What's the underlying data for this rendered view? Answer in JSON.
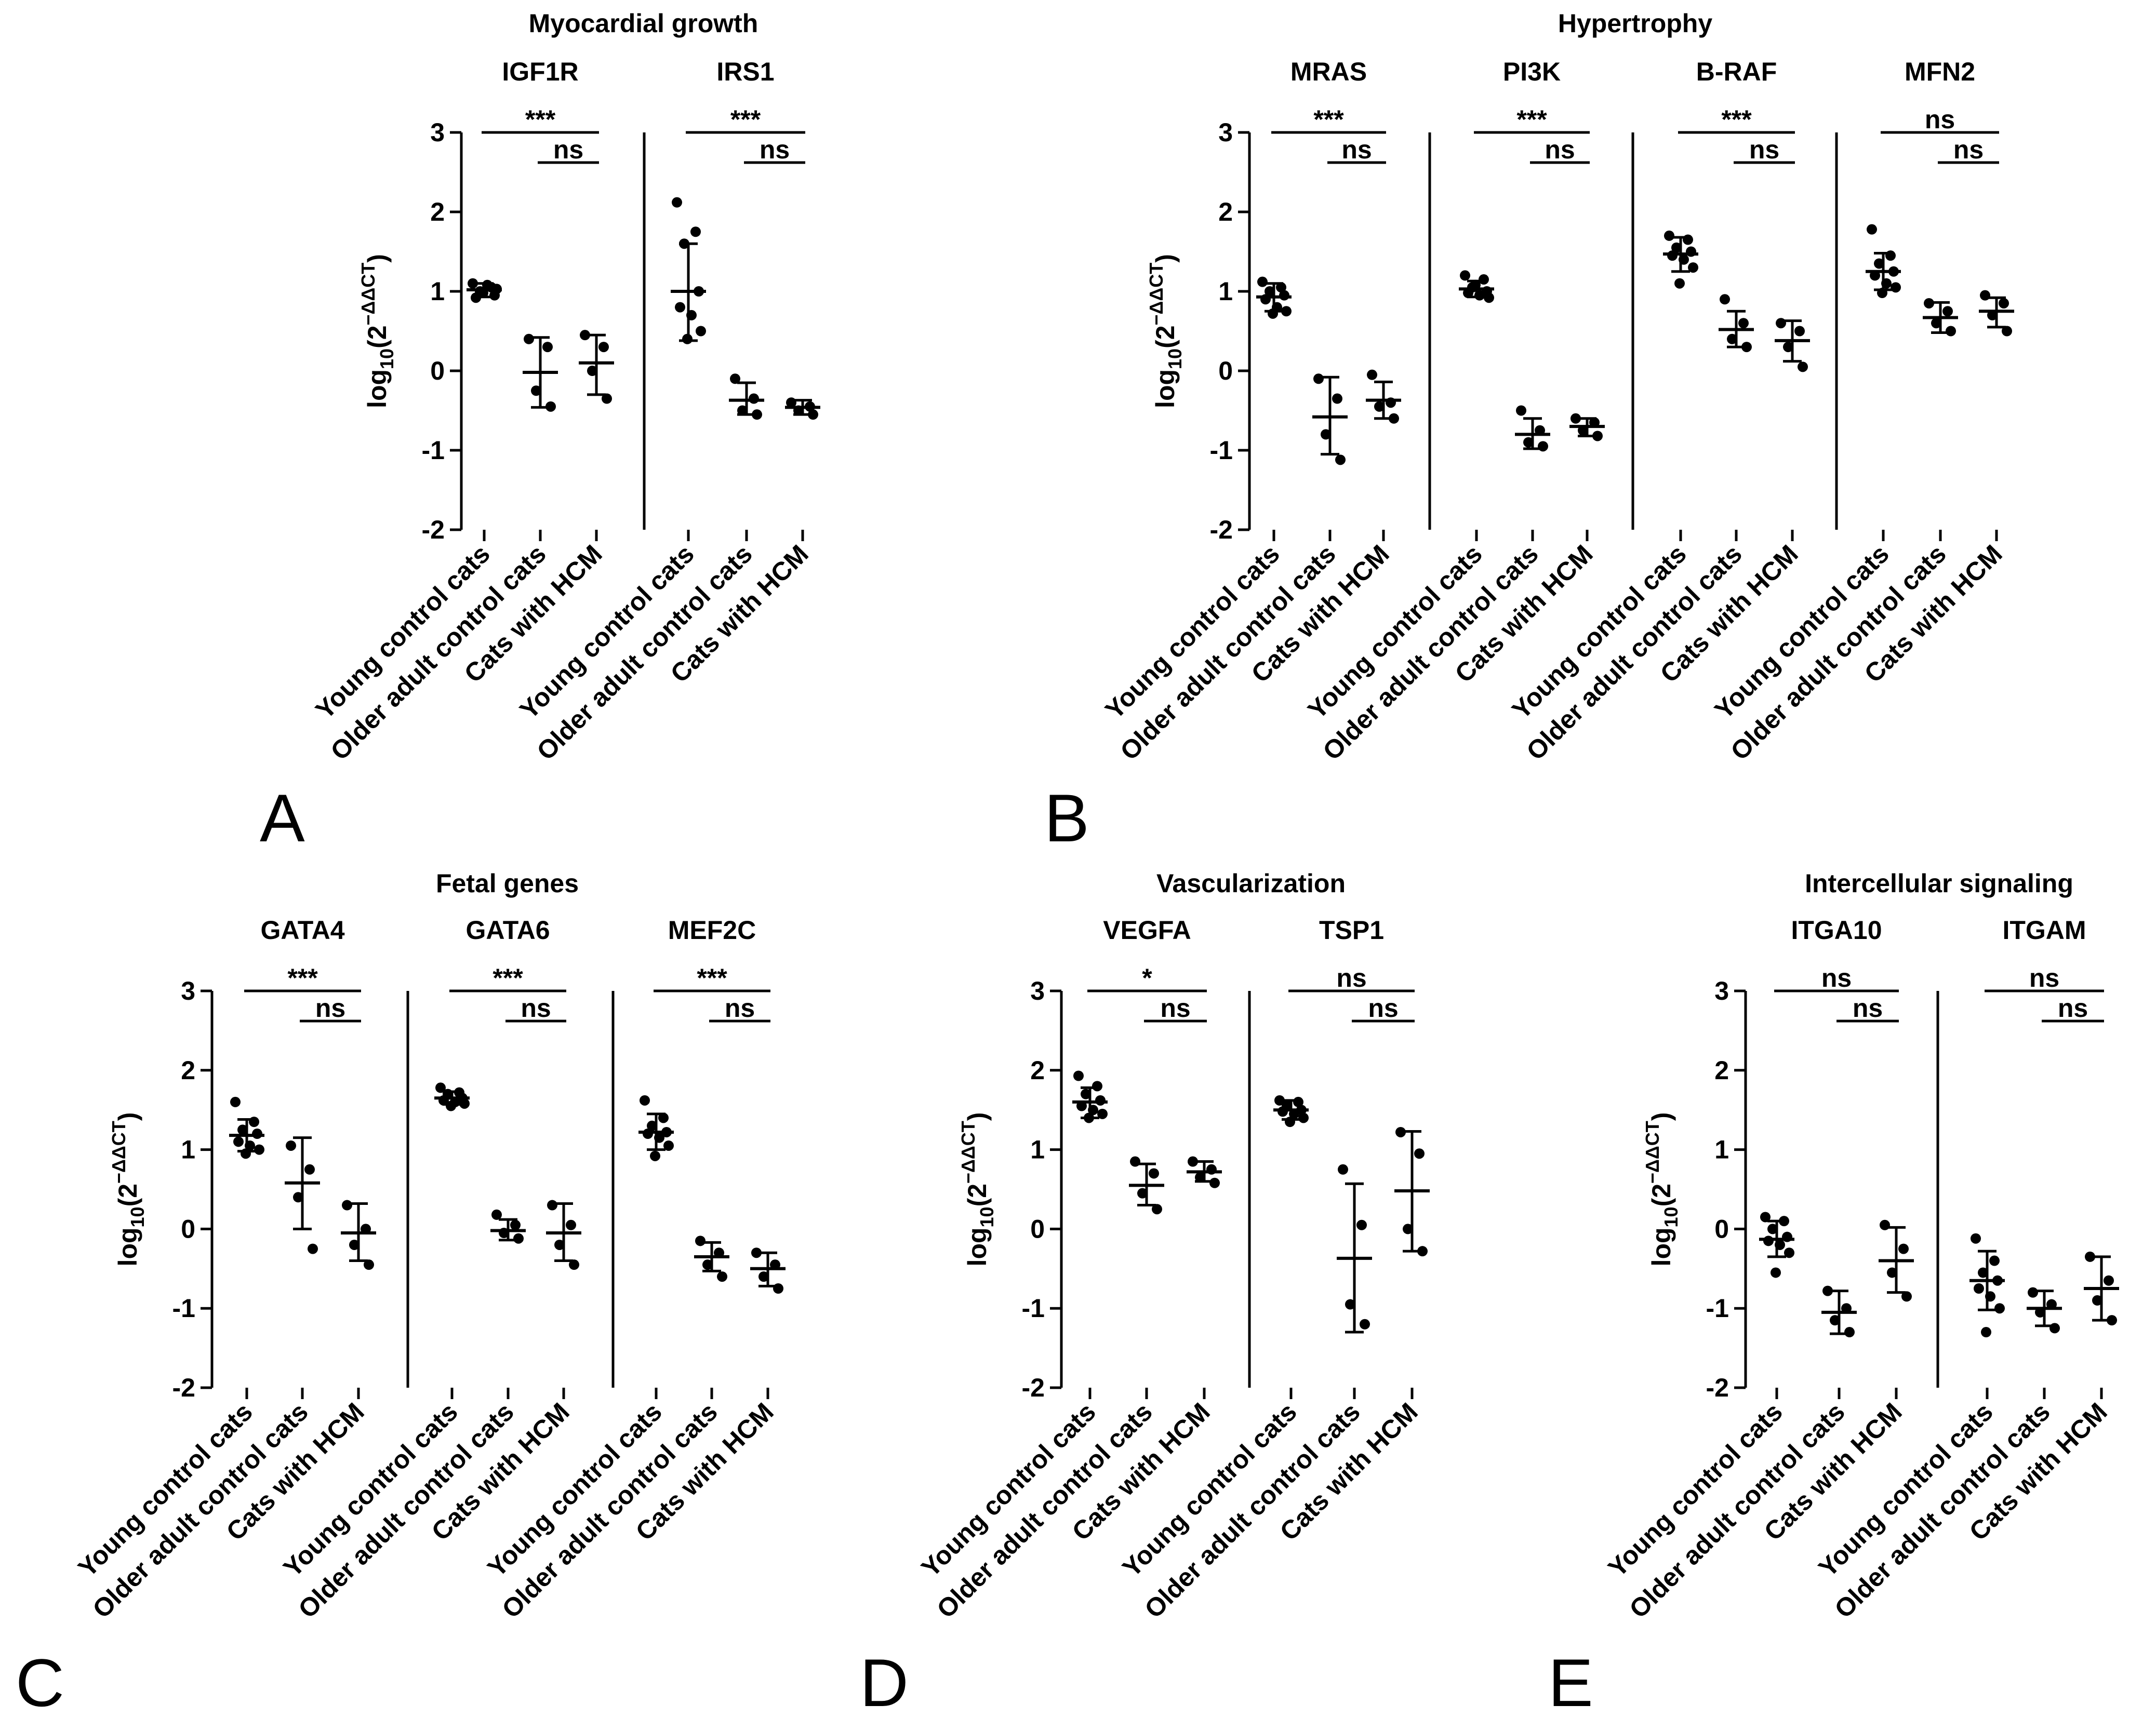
{
  "chart_data": [
    {
      "type": "scatter",
      "panel": "A",
      "title": "Myocardial growth",
      "ylabel": "log10(2−ΔΔCT)",
      "ylim": [
        -2,
        3
      ],
      "yticks": [
        "3",
        "2",
        "1",
        "0",
        "-1",
        "-2"
      ],
      "categories": [
        "Young control cats",
        "Older adult control cats",
        "Cats with HCM"
      ],
      "genes": [
        {
          "name": "IGF1R",
          "sig_main": "***",
          "sig_sub": "ns",
          "groups": [
            {
              "mean": 1.02,
              "sd_low": 0.93,
              "sd_high": 1.1,
              "points": [
                1.1,
                1.05,
                1.0,
                0.95,
                0.92,
                1.08,
                1.03,
                0.98
              ]
            },
            {
              "mean": -0.02,
              "sd_low": -0.46,
              "sd_high": 0.42,
              "points": [
                0.4,
                0.3,
                -0.25,
                -0.45
              ]
            },
            {
              "mean": 0.1,
              "sd_low": -0.3,
              "sd_high": 0.45,
              "points": [
                0.45,
                0.3,
                0.0,
                -0.35
              ]
            }
          ]
        },
        {
          "name": "IRS1",
          "sig_main": "***",
          "sig_sub": "ns",
          "groups": [
            {
              "mean": 1.0,
              "sd_low": 0.38,
              "sd_high": 1.6,
              "points": [
                2.12,
                1.75,
                1.6,
                1.0,
                0.8,
                0.7,
                0.5,
                0.4
              ]
            },
            {
              "mean": -0.37,
              "sd_low": -0.55,
              "sd_high": -0.15,
              "points": [
                -0.1,
                -0.35,
                -0.5,
                -0.55
              ]
            },
            {
              "mean": -0.46,
              "sd_low": -0.55,
              "sd_high": -0.37,
              "points": [
                -0.4,
                -0.45,
                -0.5,
                -0.55
              ]
            }
          ]
        }
      ]
    },
    {
      "type": "scatter",
      "panel": "B",
      "title": "Hypertrophy",
      "ylabel": "log10(2−ΔΔCT)",
      "ylim": [
        -2,
        3
      ],
      "yticks": [
        "3",
        "2",
        "1",
        "0",
        "-1",
        "-2"
      ],
      "categories": [
        "Young control cats",
        "Older adult control cats",
        "Cats with HCM"
      ],
      "genes": [
        {
          "name": "MRAS",
          "sig_main": "***",
          "sig_sub": "ns",
          "groups": [
            {
              "mean": 0.93,
              "sd_low": 0.75,
              "sd_high": 1.1,
              "points": [
                1.12,
                1.05,
                1.0,
                0.95,
                0.9,
                0.8,
                0.75,
                0.72
              ]
            },
            {
              "mean": -0.58,
              "sd_low": -1.05,
              "sd_high": -0.08,
              "points": [
                -0.1,
                -0.35,
                -0.8,
                -1.12
              ]
            },
            {
              "mean": -0.37,
              "sd_low": -0.6,
              "sd_high": -0.14,
              "points": [
                -0.05,
                -0.4,
                -0.45,
                -0.6
              ]
            }
          ]
        },
        {
          "name": "PI3K",
          "sig_main": "***",
          "sig_sub": "ns",
          "groups": [
            {
              "mean": 1.03,
              "sd_low": 0.93,
              "sd_high": 1.13,
              "points": [
                1.2,
                1.15,
                1.05,
                1.0,
                0.98,
                0.95,
                0.92,
                1.08
              ]
            },
            {
              "mean": -0.8,
              "sd_low": -0.98,
              "sd_high": -0.6,
              "points": [
                -0.5,
                -0.75,
                -0.9,
                -0.95
              ]
            },
            {
              "mean": -0.7,
              "sd_low": -0.82,
              "sd_high": -0.6,
              "points": [
                -0.6,
                -0.65,
                -0.75,
                -0.82
              ]
            }
          ]
        },
        {
          "name": "B-RAF",
          "sig_main": "***",
          "sig_sub": "ns",
          "groups": [
            {
              "mean": 1.47,
              "sd_low": 1.25,
              "sd_high": 1.68,
              "points": [
                1.7,
                1.65,
                1.55,
                1.5,
                1.45,
                1.4,
                1.3,
                1.1
              ]
            },
            {
              "mean": 0.52,
              "sd_low": 0.3,
              "sd_high": 0.75,
              "points": [
                0.9,
                0.6,
                0.4,
                0.3
              ]
            },
            {
              "mean": 0.38,
              "sd_low": 0.12,
              "sd_high": 0.63,
              "points": [
                0.6,
                0.5,
                0.3,
                0.05
              ]
            }
          ]
        },
        {
          "name": "MFN2",
          "sig_main": "ns",
          "sig_sub": "ns",
          "groups": [
            {
              "mean": 1.25,
              "sd_low": 1.02,
              "sd_high": 1.48,
              "points": [
                1.78,
                1.45,
                1.35,
                1.25,
                1.2,
                1.1,
                1.05,
                0.98
              ]
            },
            {
              "mean": 0.67,
              "sd_low": 0.48,
              "sd_high": 0.86,
              "points": [
                0.85,
                0.75,
                0.6,
                0.5
              ]
            },
            {
              "mean": 0.75,
              "sd_low": 0.55,
              "sd_high": 0.92,
              "points": [
                0.95,
                0.85,
                0.7,
                0.5
              ]
            }
          ]
        }
      ]
    },
    {
      "type": "scatter",
      "panel": "C",
      "title": "Fetal genes",
      "ylabel": "log10(2−ΔΔCT)",
      "ylim": [
        -2,
        3
      ],
      "yticks": [
        "3",
        "2",
        "1",
        "0",
        "-1",
        "-2"
      ],
      "categories": [
        "Young control cats",
        "Older adult control cats",
        "Cats with HCM"
      ],
      "genes": [
        {
          "name": "GATA4",
          "sig_main": "***",
          "sig_sub": "ns",
          "groups": [
            {
              "mean": 1.18,
              "sd_low": 0.98,
              "sd_high": 1.38,
              "points": [
                1.6,
                1.35,
                1.25,
                1.2,
                1.1,
                1.05,
                1.0,
                0.95
              ]
            },
            {
              "mean": 0.58,
              "sd_low": 0.0,
              "sd_high": 1.15,
              "points": [
                1.05,
                0.75,
                0.4,
                -0.25
              ]
            },
            {
              "mean": -0.05,
              "sd_low": -0.4,
              "sd_high": 0.32,
              "points": [
                0.3,
                0.0,
                -0.2,
                -0.45
              ]
            }
          ]
        },
        {
          "name": "GATA6",
          "sig_main": "***",
          "sig_sub": "ns",
          "groups": [
            {
              "mean": 1.65,
              "sd_low": 1.57,
              "sd_high": 1.73,
              "points": [
                1.78,
                1.72,
                1.7,
                1.65,
                1.62,
                1.6,
                1.58,
                1.55
              ]
            },
            {
              "mean": -0.02,
              "sd_low": -0.14,
              "sd_high": 0.12,
              "points": [
                0.18,
                0.05,
                -0.05,
                -0.12
              ]
            },
            {
              "mean": -0.05,
              "sd_low": -0.4,
              "sd_high": 0.32,
              "points": [
                0.3,
                0.05,
                -0.2,
                -0.45
              ]
            }
          ]
        },
        {
          "name": "MEF2C",
          "sig_main": "***",
          "sig_sub": "ns",
          "groups": [
            {
              "mean": 1.22,
              "sd_low": 1.0,
              "sd_high": 1.45,
              "points": [
                1.62,
                1.4,
                1.3,
                1.22,
                1.2,
                1.15,
                1.05,
                0.92
              ]
            },
            {
              "mean": -0.35,
              "sd_low": -0.53,
              "sd_high": -0.17,
              "points": [
                -0.15,
                -0.3,
                -0.45,
                -0.6
              ]
            },
            {
              "mean": -0.5,
              "sd_low": -0.72,
              "sd_high": -0.3,
              "points": [
                -0.3,
                -0.45,
                -0.6,
                -0.75
              ]
            }
          ]
        }
      ]
    },
    {
      "type": "scatter",
      "panel": "D",
      "title": "Vascularization",
      "ylabel": "log10(2−ΔΔCT)",
      "ylim": [
        -2,
        3
      ],
      "yticks": [
        "3",
        "2",
        "1",
        "0",
        "-1",
        "-2"
      ],
      "categories": [
        "Young control cats",
        "Older adult control cats",
        "Cats with HCM"
      ],
      "genes": [
        {
          "name": "VEGFA",
          "sig_main": "*",
          "sig_sub": "ns",
          "groups": [
            {
              "mean": 1.6,
              "sd_low": 1.4,
              "sd_high": 1.78,
              "points": [
                1.93,
                1.8,
                1.7,
                1.62,
                1.55,
                1.5,
                1.45,
                1.4
              ]
            },
            {
              "mean": 0.55,
              "sd_low": 0.3,
              "sd_high": 0.82,
              "points": [
                0.85,
                0.7,
                0.45,
                0.25
              ]
            },
            {
              "mean": 0.72,
              "sd_low": 0.6,
              "sd_high": 0.85,
              "points": [
                0.85,
                0.75,
                0.65,
                0.58
              ]
            }
          ]
        },
        {
          "name": "TSP1",
          "sig_main": "ns",
          "sig_sub": "ns",
          "groups": [
            {
              "mean": 1.5,
              "sd_low": 1.38,
              "sd_high": 1.62,
              "points": [
                1.62,
                1.6,
                1.55,
                1.5,
                1.48,
                1.45,
                1.4,
                1.35
              ]
            },
            {
              "mean": -0.37,
              "sd_low": -1.3,
              "sd_high": 0.57,
              "points": [
                0.75,
                0.05,
                -0.95,
                -1.2
              ]
            },
            {
              "mean": 0.48,
              "sd_low": -0.28,
              "sd_high": 1.23,
              "points": [
                1.22,
                0.95,
                0.0,
                -0.28
              ]
            }
          ]
        }
      ]
    },
    {
      "type": "scatter",
      "panel": "E",
      "title": "Intercellular signaling",
      "ylabel": "log10(2−ΔΔCT)",
      "ylim": [
        -2,
        3
      ],
      "yticks": [
        "3",
        "2",
        "1",
        "0",
        "-1",
        "-2"
      ],
      "categories": [
        "Young control cats",
        "Older adult control cats",
        "Cats with HCM"
      ],
      "genes": [
        {
          "name": "ITGA10",
          "sig_main": "ns",
          "sig_sub": "ns",
          "groups": [
            {
              "mean": -0.13,
              "sd_low": -0.35,
              "sd_high": 0.1,
              "points": [
                0.15,
                0.1,
                0.0,
                -0.1,
                -0.15,
                -0.2,
                -0.3,
                -0.55
              ]
            },
            {
              "mean": -1.05,
              "sd_low": -1.32,
              "sd_high": -0.78,
              "points": [
                -0.78,
                -1.0,
                -1.15,
                -1.3
              ]
            },
            {
              "mean": -0.4,
              "sd_low": -0.8,
              "sd_high": 0.02,
              "points": [
                0.05,
                -0.25,
                -0.55,
                -0.85
              ]
            }
          ]
        },
        {
          "name": "ITGAM",
          "sig_main": "ns",
          "sig_sub": "ns",
          "groups": [
            {
              "mean": -0.65,
              "sd_low": -1.02,
              "sd_high": -0.28,
              "points": [
                -0.12,
                -0.4,
                -0.55,
                -0.65,
                -0.75,
                -0.85,
                -1.0,
                -1.3
              ]
            },
            {
              "mean": -1.0,
              "sd_low": -1.22,
              "sd_high": -0.78,
              "points": [
                -0.8,
                -0.95,
                -1.05,
                -1.25
              ]
            },
            {
              "mean": -0.75,
              "sd_low": -1.15,
              "sd_high": -0.35,
              "points": [
                -0.35,
                -0.65,
                -0.9,
                -1.15
              ]
            }
          ]
        }
      ]
    }
  ]
}
